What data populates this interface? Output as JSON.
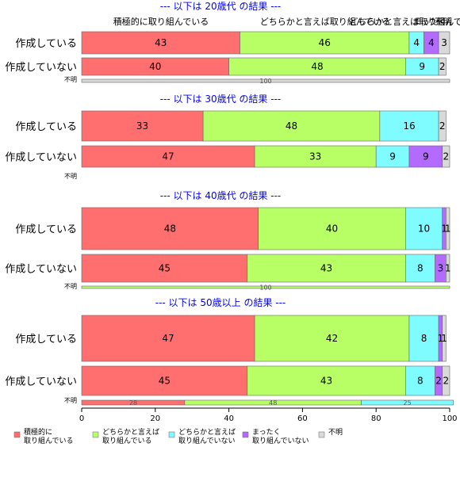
{
  "chart_data": {
    "type": "bar",
    "orientation": "horizontal-stacked-100",
    "xlim": [
      0,
      100
    ],
    "x_ticks": [
      "0",
      "20",
      "40",
      "60",
      "80",
      "100"
    ],
    "grid": false,
    "legend_position": "bottom",
    "legend": [
      {
        "name": "積極的に\n取り組んでいる",
        "color": "#ff6f6f"
      },
      {
        "name": "どちらかと言えば\n取り組んでいる",
        "color": "#b8ff66"
      },
      {
        "name": "どちらかと言えば\n取り組んでいない",
        "color": "#7ffcff"
      },
      {
        "name": "まったく\n取り組んでいない",
        "color": "#b36bff"
      },
      {
        "name": "不明",
        "color": "#d9d9d9"
      }
    ],
    "header_labels": [
      "積極的に取り組んでいる",
      "どちらかと言えば取り組んでいる",
      "どちらかと言えば取り組んでいない",
      "まったく",
      "不明"
    ],
    "panels": [
      {
        "title": "--- 以下は 20歳代 の結果 ---",
        "rows": [
          {
            "label": "作成している",
            "values": [
              43,
              46,
              4,
              4,
              3
            ]
          },
          {
            "label": "作成していない",
            "values": [
              40,
              48,
              9,
              0,
              2
            ]
          },
          {
            "label": "不明",
            "values": [
              0,
              0,
              0,
              0,
              100
            ],
            "small": true
          }
        ]
      },
      {
        "title": "--- 以下は 30歳代 の結果 ---",
        "rows": [
          {
            "label": "作成している",
            "values": [
              33,
              48,
              16,
              0,
              2
            ]
          },
          {
            "label": "作成していない",
            "values": [
              47,
              33,
              9,
              9,
              2
            ]
          },
          {
            "label": "不明",
            "values": [],
            "small": true
          }
        ]
      },
      {
        "title": "--- 以下は 40歳代 の結果 ---",
        "rows": [
          {
            "label": "作成している",
            "values": [
              48,
              40,
              10,
              1,
              1
            ]
          },
          {
            "label": "作成していない",
            "values": [
              45,
              43,
              8,
              3,
              1
            ]
          },
          {
            "label": "不明",
            "values": [
              0,
              100,
              0,
              0,
              0
            ],
            "small": true
          }
        ]
      },
      {
        "title": "--- 以下は 50歳以上 の結果 ---",
        "rows": [
          {
            "label": "作成している",
            "values": [
              47,
              42,
              8,
              1,
              1
            ]
          },
          {
            "label": "作成していない",
            "values": [
              45,
              43,
              8,
              2,
              2
            ]
          },
          {
            "label": "不明",
            "values": [
              28,
              48,
              25,
              0,
              0
            ],
            "small": true
          }
        ]
      }
    ]
  }
}
